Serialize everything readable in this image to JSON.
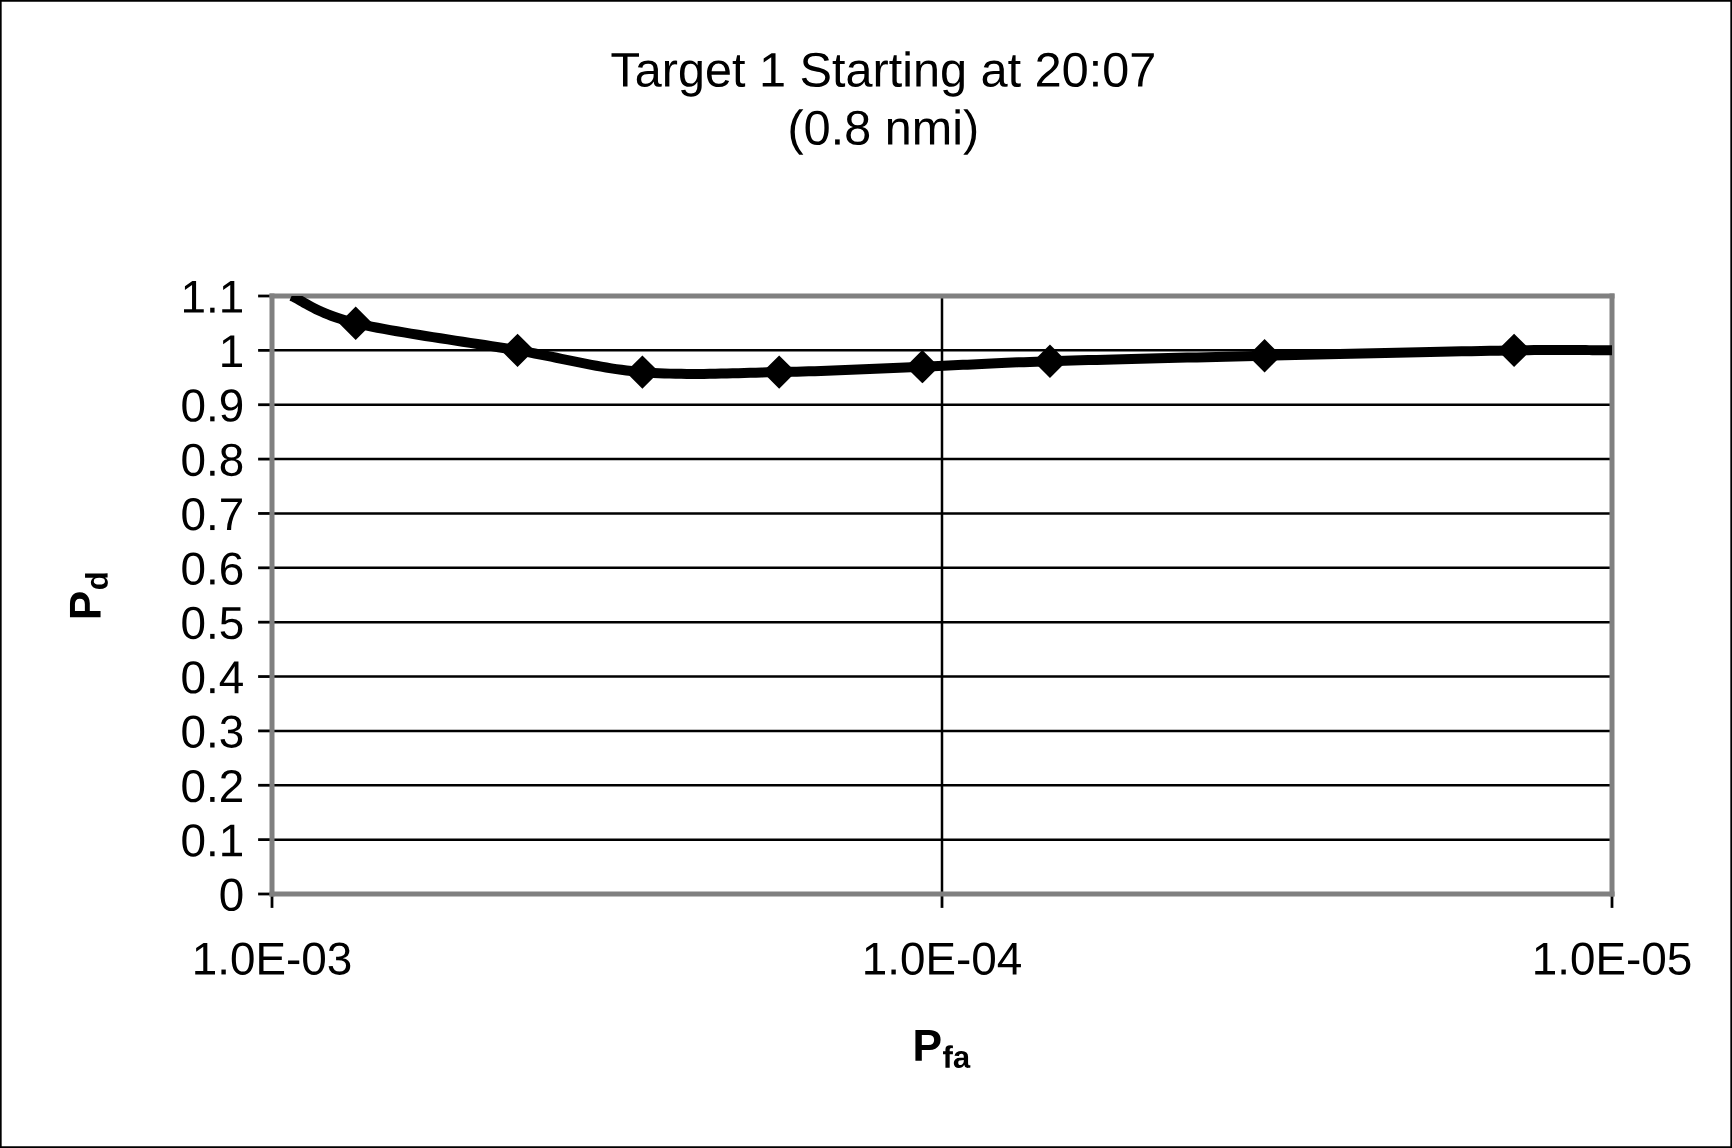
{
  "chart_data": {
    "type": "line",
    "title": "Target 1 Starting at 20:07",
    "subtitle": "(0.8 nmi)",
    "xlabel": "P$_{fa}$",
    "ylabel": "P$_{d}$",
    "log": "x",
    "grid": true,
    "xlim": [
      0.001,
      1e-05
    ],
    "xticks": [
      {
        "value": 0.001,
        "label": "1.0E-03"
      },
      {
        "value": 0.0001,
        "label": "1.0E-04"
      },
      {
        "value": 1e-05,
        "label": "1.0E-05"
      }
    ],
    "ylim": [
      0,
      1.1
    ],
    "yticks": [
      0,
      0.1,
      0.2,
      0.3,
      0.4,
      0.5,
      0.6,
      0.7,
      0.8,
      0.9,
      1,
      1.1
    ],
    "series": [
      {
        "color": "#000000",
        "marker": "none",
        "line_style": "solid",
        "x": [
          0.000935,
          0.00075,
          0.00043,
          0.00028,
          0.000175,
          0.000107,
          6.9e-05,
          3.3e-05,
          1.4e-05,
          1e-05
        ],
        "values": [
          1.1,
          1.05,
          1.0,
          0.96,
          0.96,
          0.97,
          0.98,
          0.99,
          1.0,
          1.0
        ]
      },
      {
        "type": "scatter",
        "color": "#000000",
        "marker": "diamond",
        "x": [
          0.00075,
          0.00043,
          0.00028,
          0.000175,
          0.000107,
          6.9e-05,
          3.3e-05,
          1.4e-05
        ],
        "values": [
          1.05,
          1.0,
          0.96,
          0.96,
          0.97,
          0.98,
          0.99,
          1.0
        ]
      }
    ]
  }
}
